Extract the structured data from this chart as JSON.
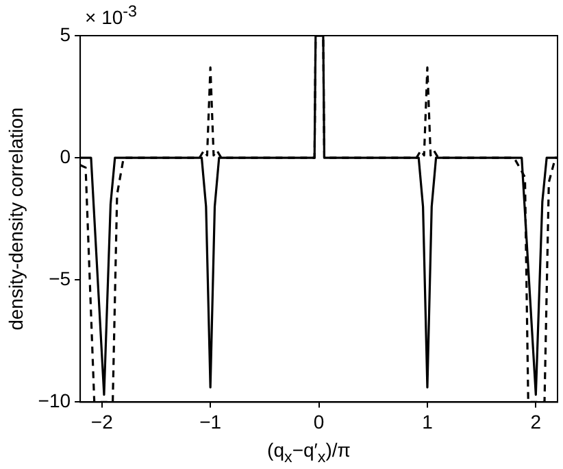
{
  "chart_data": {
    "type": "line",
    "xlabel": "(q$_{x}$−q′$_{x}$)/π",
    "ylabel": "density-density correlation",
    "annotations": [
      "× 10$^{-3}$"
    ],
    "xlim": [
      -2.2,
      2.2
    ],
    "xticks": [
      -2,
      -1,
      0,
      1,
      2
    ],
    "ylim": [
      -10,
      5
    ],
    "yticks": [
      -10,
      -5,
      0,
      5
    ],
    "grid": false,
    "legend": false,
    "marker": "none",
    "series": [
      {
        "color": "#000000",
        "line_style": "solid",
        "x": [
          -2.2,
          -2.1,
          -1.98,
          -1.92,
          -1.88,
          -1.08,
          -1.04,
          -1.0,
          -0.96,
          -0.92,
          -0.04,
          -0.03,
          0.04,
          0.05,
          0.92,
          0.96,
          1.0,
          1.04,
          1.08,
          1.87,
          2.0,
          2.06,
          2.1,
          2.2
        ],
        "values": [
          0,
          0,
          -9.7,
          -1.9,
          0,
          0,
          -2,
          -9.4,
          -2,
          0,
          0,
          5,
          5,
          0,
          0,
          -2,
          -9.4,
          -2,
          0,
          0,
          -9.7,
          -1.8,
          0,
          0
        ]
      },
      {
        "color": "#000000",
        "line_style": "dashed",
        "x": [
          -2.2,
          -2.15,
          -2.07,
          -1.9,
          -1.86,
          -1.84,
          -1.8,
          -1.1,
          -1.06,
          -1.03,
          -1.0,
          -0.97,
          -0.94,
          -0.9,
          -0.04,
          -0.03,
          0.04,
          0.05,
          0.9,
          0.94,
          0.97,
          1.0,
          1.03,
          1.06,
          1.1,
          1.8,
          1.9,
          1.93,
          2.08,
          2.12,
          2.18,
          2.2
        ],
        "values": [
          -0.3,
          -0.4,
          -10,
          -10,
          -1.5,
          -1,
          0,
          0,
          0.3,
          0.1,
          3.7,
          0.1,
          0.3,
          0,
          0,
          5,
          5,
          0,
          0,
          0.3,
          0.1,
          3.7,
          0.1,
          0.3,
          0,
          0,
          -0.8,
          -10,
          -10,
          -1,
          0,
          0
        ]
      }
    ]
  }
}
